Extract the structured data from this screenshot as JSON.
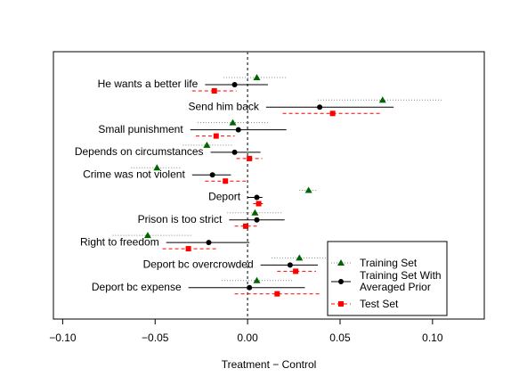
{
  "chart_data": {
    "type": "dot-interval",
    "x_label": "Treatment − Control",
    "categories": [
      "He wants a better life",
      "Send him back",
      "Small punishment",
      "Depends on circumstances",
      "Crime was not violent",
      "Deport",
      "Prison is too strict",
      "Right to freedom",
      "Deport bc overcrowded",
      "Deport bc expense"
    ],
    "xlim": [
      -0.105,
      0.128
    ],
    "xticks": [
      {
        "value": -0.1,
        "label": "−0.10"
      },
      {
        "value": -0.05,
        "label": "−0.05"
      },
      {
        "value": 0,
        "label": "0.00"
      },
      0.05,
      {
        "value": 0.1,
        "label": "0.10"
      }
    ],
    "reference_line": 0,
    "legend_position": "bottom-right",
    "series": [
      {
        "name": "Training Set",
        "color": "#006400",
        "line_color": "#888888",
        "marker": "triangle",
        "line_style": "dotted",
        "values": [
          0.005,
          0.073,
          -0.008,
          -0.022,
          -0.049,
          0.033,
          0.004,
          -0.054,
          0.028,
          0.005
        ],
        "lower": [
          -0.013,
          0.038,
          -0.027,
          -0.035,
          -0.063,
          0.028,
          -0.011,
          -0.073,
          0.013,
          -0.014
        ],
        "upper": [
          0.021,
          0.105,
          0.012,
          -0.008,
          -0.036,
          0.038,
          0.019,
          -0.03,
          0.043,
          0.024
        ]
      },
      {
        "name": "Training Set With\n Averaged Prior",
        "color": "#000000",
        "line_color": "#000000",
        "marker": "circle",
        "line_style": "solid",
        "values": [
          -0.007,
          0.039,
          -0.005,
          -0.007,
          -0.019,
          0.005,
          0.005,
          -0.021,
          0.023,
          0.001
        ],
        "lower": [
          -0.023,
          0.01,
          -0.031,
          -0.02,
          -0.03,
          0.0,
          -0.01,
          -0.044,
          0.007,
          -0.032
        ],
        "upper": [
          0.011,
          0.079,
          0.021,
          0.007,
          -0.009,
          0.008,
          0.02,
          0.001,
          0.038,
          0.031
        ]
      },
      {
        "name": "Test Set",
        "color": "#ff0000",
        "line_color": "#ff0000",
        "marker": "square",
        "line_style": "dashed",
        "values": [
          -0.018,
          0.046,
          -0.017,
          0.001,
          -0.012,
          0.006,
          -0.001,
          -0.032,
          0.026,
          0.016
        ],
        "lower": [
          -0.03,
          0.019,
          -0.028,
          -0.006,
          -0.023,
          0.003,
          -0.007,
          -0.046,
          0.016,
          -0.007
        ],
        "upper": [
          -0.006,
          0.072,
          -0.007,
          0.008,
          -0.001,
          0.009,
          0.005,
          -0.017,
          0.037,
          0.04
        ]
      }
    ]
  }
}
